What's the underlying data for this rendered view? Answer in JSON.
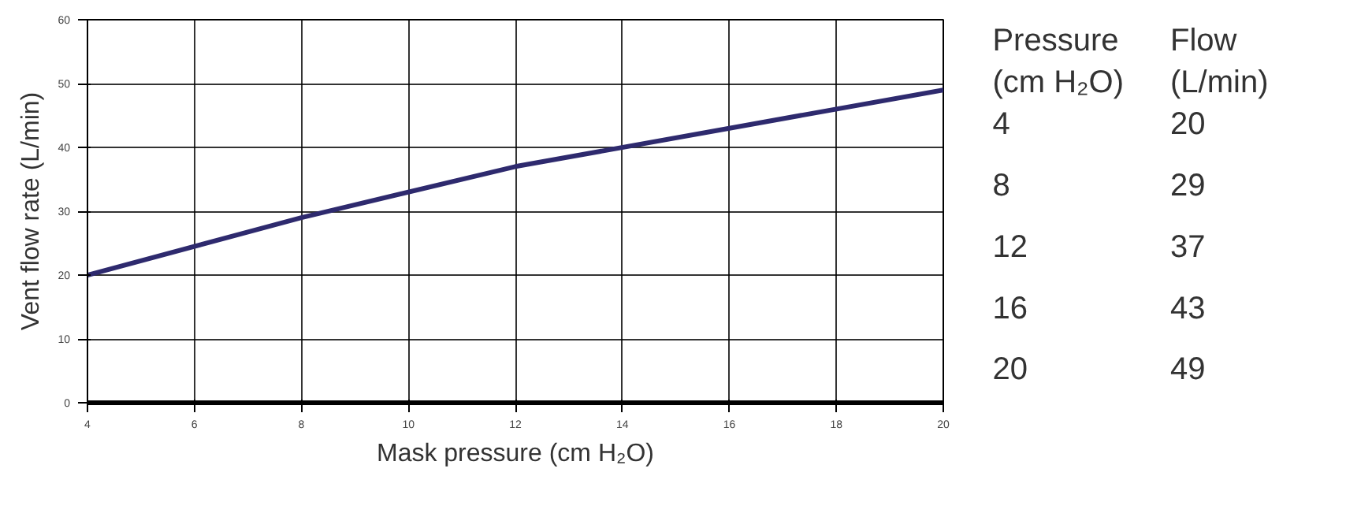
{
  "chart_data": {
    "type": "line",
    "xlabel": "Mask pressure (cm H₂O)",
    "ylabel": "Vent flow rate (L/min)",
    "x": [
      4,
      8,
      12,
      16,
      20
    ],
    "series": [
      {
        "color": "#2e2a6e",
        "values": [
          20,
          29,
          37,
          43,
          49
        ]
      }
    ],
    "xlim": [
      4,
      20
    ],
    "xticks": [
      4,
      6,
      8,
      10,
      12,
      14,
      16,
      18,
      20
    ],
    "ylim": [
      0,
      60
    ],
    "yticks": [
      0,
      10,
      20,
      30,
      40,
      50,
      60
    ],
    "grid": true,
    "line_style": "solid",
    "annotations": [
      "Pressure (cm H₂O)",
      "Flow (L/min)",
      "4",
      "20",
      "8",
      "29",
      "12",
      "37",
      "16",
      "43",
      "20",
      "49"
    ]
  }
}
